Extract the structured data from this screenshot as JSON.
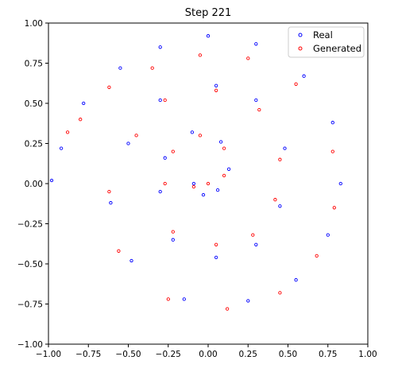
{
  "chart_data": {
    "type": "scatter",
    "title": "Step 221",
    "xlabel": "",
    "ylabel": "",
    "xlim": [
      -1.0,
      1.0
    ],
    "ylim": [
      -1.0,
      1.0
    ],
    "x_ticks": [
      "−1.00",
      "−0.75",
      "−0.50",
      "−0.25",
      "0.00",
      "0.25",
      "0.50",
      "0.75",
      "1.00"
    ],
    "y_ticks": [
      "−1.00",
      "−0.75",
      "−0.50",
      "−0.25",
      "0.00",
      "0.25",
      "0.50",
      "0.75",
      "1.00"
    ],
    "grid": false,
    "legend_position": "top-right",
    "series": [
      {
        "name": "Real",
        "color": "#0000ff",
        "marker": "hollow-circle",
        "points": [
          [
            -0.09,
            0.0
          ],
          [
            -0.03,
            -0.07
          ],
          [
            0.06,
            -0.04
          ],
          [
            0.13,
            0.09
          ],
          [
            0.08,
            0.26
          ],
          [
            -0.1,
            0.32
          ],
          [
            -0.27,
            0.16
          ],
          [
            -0.3,
            -0.05
          ],
          [
            -0.22,
            -0.35
          ],
          [
            0.05,
            -0.46
          ],
          [
            0.3,
            -0.38
          ],
          [
            0.45,
            -0.14
          ],
          [
            0.48,
            0.22
          ],
          [
            0.3,
            0.52
          ],
          [
            0.05,
            0.61
          ],
          [
            -0.3,
            0.52
          ],
          [
            -0.5,
            0.25
          ],
          [
            -0.61,
            -0.12
          ],
          [
            -0.48,
            -0.48
          ],
          [
            -0.15,
            -0.72
          ],
          [
            0.25,
            -0.73
          ],
          [
            0.55,
            -0.6
          ],
          [
            0.75,
            -0.32
          ],
          [
            0.83,
            0.0
          ],
          [
            0.78,
            0.38
          ],
          [
            0.6,
            0.67
          ],
          [
            0.3,
            0.87
          ],
          [
            0.0,
            0.92
          ],
          [
            -0.3,
            0.85
          ],
          [
            -0.55,
            0.72
          ],
          [
            -0.78,
            0.5
          ],
          [
            -0.92,
            0.22
          ],
          [
            -0.98,
            0.02
          ]
        ]
      },
      {
        "name": "Generated",
        "color": "#ff0000",
        "marker": "hollow-circle",
        "points": [
          [
            -0.09,
            -0.02
          ],
          [
            0.0,
            0.0
          ],
          [
            0.1,
            0.05
          ],
          [
            0.1,
            0.22
          ],
          [
            -0.05,
            0.3
          ],
          [
            -0.22,
            0.2
          ],
          [
            -0.27,
            0.0
          ],
          [
            -0.22,
            -0.3
          ],
          [
            0.05,
            -0.38
          ],
          [
            0.28,
            -0.32
          ],
          [
            0.42,
            -0.1
          ],
          [
            0.45,
            0.15
          ],
          [
            0.32,
            0.46
          ],
          [
            0.05,
            0.58
          ],
          [
            -0.27,
            0.52
          ],
          [
            -0.45,
            0.3
          ],
          [
            -0.62,
            -0.05
          ],
          [
            -0.56,
            -0.42
          ],
          [
            -0.25,
            -0.72
          ],
          [
            0.12,
            -0.78
          ],
          [
            0.45,
            -0.68
          ],
          [
            0.68,
            -0.45
          ],
          [
            0.79,
            -0.15
          ],
          [
            0.78,
            0.2
          ],
          [
            0.55,
            0.62
          ],
          [
            0.25,
            0.78
          ],
          [
            -0.05,
            0.8
          ],
          [
            -0.35,
            0.72
          ],
          [
            -0.62,
            0.6
          ],
          [
            -0.8,
            0.4
          ],
          [
            -0.88,
            0.32
          ]
        ]
      }
    ]
  }
}
